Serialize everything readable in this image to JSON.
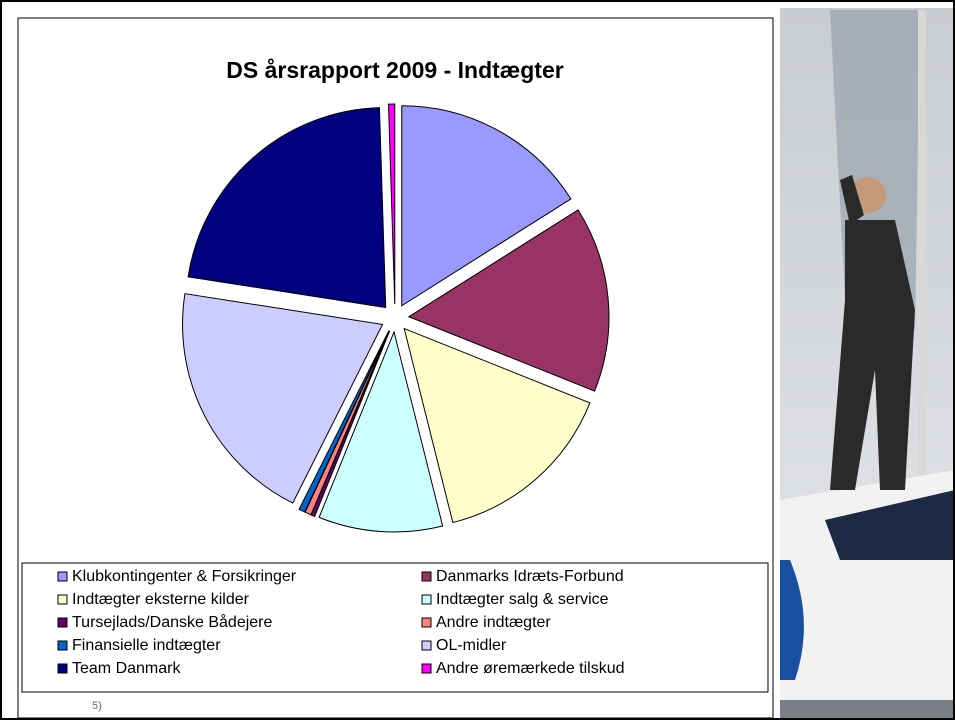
{
  "chart_data": {
    "type": "pie",
    "title": "DS årsrapport 2009 - Indtægter",
    "categories": [
      "Klubkontingenter & Forsikringer",
      "Danmarks Idræts-Forbund",
      "Indtægter eksterne kilder",
      "Indtægter salg & service",
      "Tursejlads/Danske Bådejere",
      "Andre indtægter",
      "Finansielle indtægter",
      "OL-midler",
      "Team Danmark",
      "Andre øremærkede tilskud"
    ],
    "values": [
      16,
      15,
      15,
      10,
      0.3,
      0.5,
      0.5,
      20,
      22,
      0.5
    ],
    "colors": [
      "#9999ff",
      "#993366",
      "#ffffcc",
      "#ccffff",
      "#660066",
      "#ff8080",
      "#0066cc",
      "#ccccff",
      "#000080",
      "#ff00ff"
    ],
    "legend": "bottom"
  },
  "footnote": "5)"
}
